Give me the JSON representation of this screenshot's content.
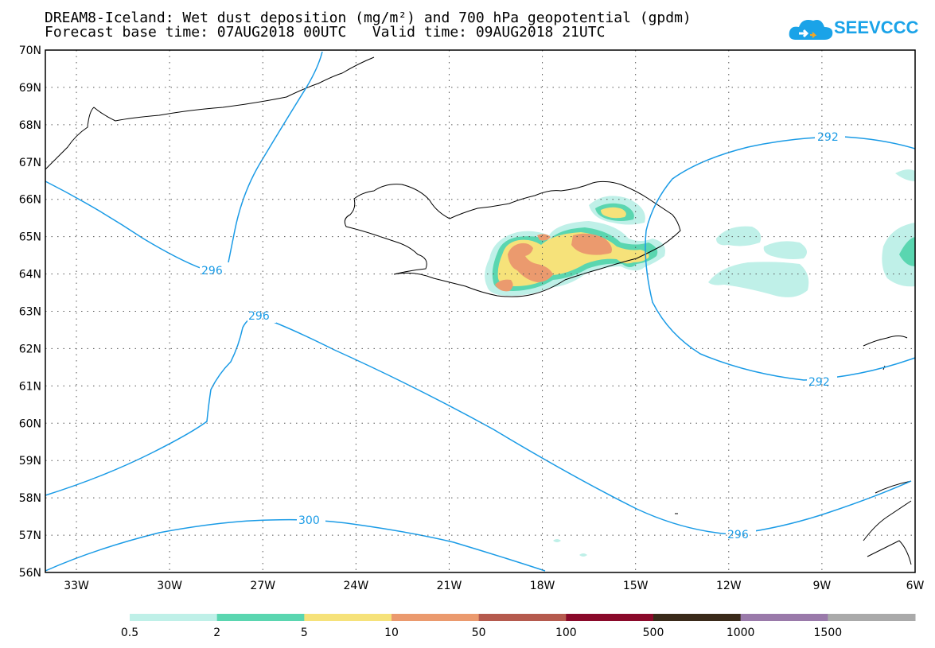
{
  "title": {
    "line1": "DREAM8-Iceland: Wet dust deposition (mg/m²) and 700 hPa geopotential (gpdm)",
    "line2": "Forecast base time: 07AUG2018 00UTC   Valid time: 09AUG2018 21UTC"
  },
  "logo": {
    "text": "SEEVCCC",
    "color": "#1aa3e8"
  },
  "axes": {
    "lat_labels": [
      "70N",
      "69N",
      "68N",
      "67N",
      "66N",
      "65N",
      "64N",
      "63N",
      "62N",
      "61N",
      "60N",
      "59N",
      "58N",
      "57N",
      "56N"
    ],
    "lon_labels": [
      "33W",
      "30W",
      "27W",
      "24W",
      "21W",
      "18W",
      "15W",
      "12W",
      "9W",
      "6W"
    ],
    "grid": "dotted"
  },
  "contours": {
    "color": "#1a9be6",
    "labels": [
      {
        "text": "296",
        "id": "c296a"
      },
      {
        "text": "296",
        "id": "c296b"
      },
      {
        "text": "300",
        "id": "c300"
      },
      {
        "text": "292",
        "id": "c292a"
      },
      {
        "text": "292",
        "id": "c292b"
      },
      {
        "text": "296",
        "id": "c296c"
      }
    ]
  },
  "legend": {
    "colors": [
      "#bff0e8",
      "#5ad6b0",
      "#f6e27a",
      "#eb9a6e",
      "#b55a4e",
      "#8a0a2a",
      "#3a2a1a",
      "#9a7aaa",
      "#aaaaaa"
    ],
    "labels": [
      "0.5",
      "2",
      "5",
      "10",
      "50",
      "100",
      "500",
      "1000",
      "1500"
    ]
  }
}
